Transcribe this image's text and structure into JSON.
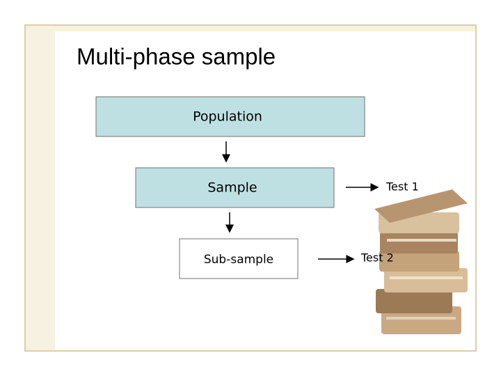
{
  "title": "Multi-phase sample",
  "nodes": [
    {
      "label": "Population"
    },
    {
      "label": "Sample"
    },
    {
      "label": "Sub-sample"
    }
  ],
  "tests": [
    {
      "label": "Test 1"
    },
    {
      "label": "Test 2"
    }
  ]
}
